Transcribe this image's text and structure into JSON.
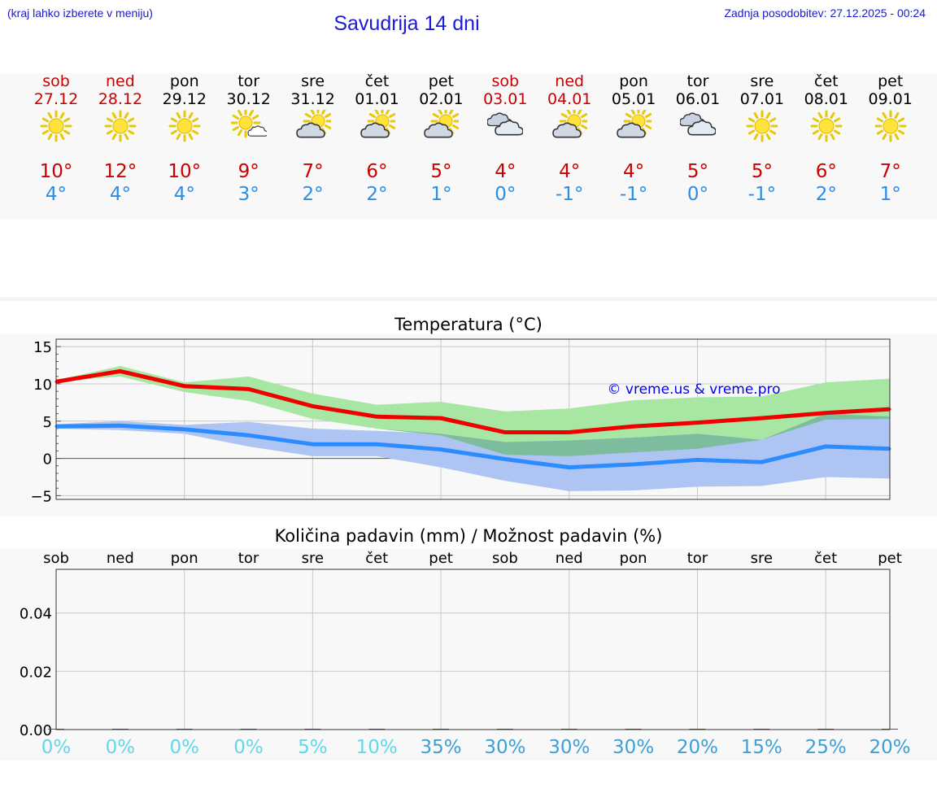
{
  "header": {
    "menu_hint": "(kraj lahko izberete v meniju)",
    "title": "Savudrija 14 dni",
    "updated": "Zadnja posodobitev: 27.12.2025 - 00:24"
  },
  "days": [
    {
      "name": "sob",
      "date": "27.12",
      "weekend": true,
      "icon": "sun-icon",
      "tmax": "10°",
      "tmin": "4°"
    },
    {
      "name": "ned",
      "date": "28.12",
      "weekend": true,
      "icon": "sun-icon",
      "tmax": "12°",
      "tmin": "4°"
    },
    {
      "name": "pon",
      "date": "29.12",
      "weekend": false,
      "icon": "sun-icon",
      "tmax": "10°",
      "tmin": "4°"
    },
    {
      "name": "tor",
      "date": "30.12",
      "weekend": false,
      "icon": "sun-small-cloud-icon",
      "tmax": "9°",
      "tmin": "3°"
    },
    {
      "name": "sre",
      "date": "31.12",
      "weekend": false,
      "icon": "partly-cloudy-icon",
      "tmax": "7°",
      "tmin": "2°"
    },
    {
      "name": "čet",
      "date": "01.01",
      "weekend": false,
      "icon": "partly-cloudy-icon",
      "tmax": "6°",
      "tmin": "2°"
    },
    {
      "name": "pet",
      "date": "02.01",
      "weekend": false,
      "icon": "partly-cloudy-icon",
      "tmax": "5°",
      "tmin": "1°"
    },
    {
      "name": "sob",
      "date": "03.01",
      "weekend": true,
      "icon": "cloudy-icon",
      "tmax": "4°",
      "tmin": "0°"
    },
    {
      "name": "ned",
      "date": "04.01",
      "weekend": true,
      "icon": "partly-cloudy-icon",
      "tmax": "4°",
      "tmin": "-1°"
    },
    {
      "name": "pon",
      "date": "05.01",
      "weekend": false,
      "icon": "partly-cloudy-icon",
      "tmax": "4°",
      "tmin": "-1°"
    },
    {
      "name": "tor",
      "date": "06.01",
      "weekend": false,
      "icon": "cloudy-icon",
      "tmax": "5°",
      "tmin": "0°"
    },
    {
      "name": "sre",
      "date": "07.01",
      "weekend": false,
      "icon": "sun-icon",
      "tmax": "5°",
      "tmin": "-1°"
    },
    {
      "name": "čet",
      "date": "08.01",
      "weekend": false,
      "icon": "sun-icon",
      "tmax": "6°",
      "tmin": "2°"
    },
    {
      "name": "pet",
      "date": "09.01",
      "weekend": false,
      "icon": "sun-icon",
      "tmax": "7°",
      "tmin": "1°"
    }
  ],
  "colors": {
    "max_line": "#ee0000",
    "min_line": "#2a8cff",
    "max_band": "#a8e6a4",
    "min_band": "#aec4f2",
    "overlap_band": "#7ebc9e",
    "weekend": "#cc0000",
    "tmin_text": "#2a8de8",
    "precip_low": "#5fd8e8",
    "precip_high": "#3aa0d8"
  },
  "chart_data": [
    {
      "type": "line",
      "title": "Temperatura (°C)",
      "watermark": "© vreme.us & vreme.pro",
      "ylim": [
        -5.5,
        16
      ],
      "yticks": [
        15,
        10,
        5,
        0,
        -5
      ],
      "ytick_labels": [
        "15",
        "10",
        "5",
        "0",
        "−5"
      ],
      "x": [
        0,
        1,
        2,
        3,
        4,
        5,
        6,
        7,
        8,
        9,
        10,
        11,
        12,
        13
      ],
      "series": [
        {
          "name": "max",
          "values": [
            10.3,
            11.7,
            9.7,
            9.3,
            7.0,
            5.6,
            5.4,
            3.5,
            3.5,
            4.3,
            4.8,
            5.4,
            6.1,
            6.6
          ],
          "band_low": [
            10.3,
            11.0,
            8.9,
            7.7,
            5.3,
            4.0,
            3.1,
            0.5,
            0.3,
            0.8,
            1.3,
            2.5,
            5.2,
            5.3
          ],
          "band_high": [
            10.5,
            12.4,
            10.2,
            11.0,
            8.7,
            7.2,
            7.6,
            6.3,
            6.7,
            7.8,
            8.2,
            8.3,
            10.2,
            10.7
          ]
        },
        {
          "name": "min",
          "values": [
            4.3,
            4.4,
            3.9,
            3.1,
            1.9,
            1.9,
            1.2,
            -0.1,
            -1.2,
            -0.8,
            -0.2,
            -0.5,
            1.6,
            1.3
          ],
          "band_low": [
            4.0,
            3.8,
            3.3,
            1.6,
            0.3,
            0.3,
            -1.2,
            -3.0,
            -4.4,
            -4.3,
            -3.8,
            -3.7,
            -2.5,
            -2.7
          ],
          "band_high": [
            4.6,
            5.0,
            4.5,
            4.9,
            4.0,
            3.7,
            3.3,
            2.2,
            2.4,
            2.8,
            3.3,
            2.5,
            6.0,
            5.6
          ]
        }
      ]
    },
    {
      "type": "bar",
      "title": "Količina padavin (mm) / Možnost padavin (%)",
      "categories": [
        "sob",
        "ned",
        "pon",
        "tor",
        "sre",
        "čet",
        "pet",
        "sob",
        "ned",
        "pon",
        "tor",
        "sre",
        "čet",
        "pet"
      ],
      "values": [
        0,
        0,
        0,
        0,
        0,
        0,
        0,
        0,
        0,
        0,
        0,
        0,
        0,
        0
      ],
      "ylim": [
        0,
        0.055
      ],
      "yticks": [
        0.04,
        0.02,
        0.0
      ],
      "ytick_labels": [
        "0.04",
        "0.02",
        "0.00"
      ],
      "probability_labels": [
        "0%",
        "0%",
        "0%",
        "0%",
        "5%",
        "10%",
        "35%",
        "30%",
        "30%",
        "30%",
        "20%",
        "15%",
        "25%",
        "20%"
      ]
    }
  ]
}
